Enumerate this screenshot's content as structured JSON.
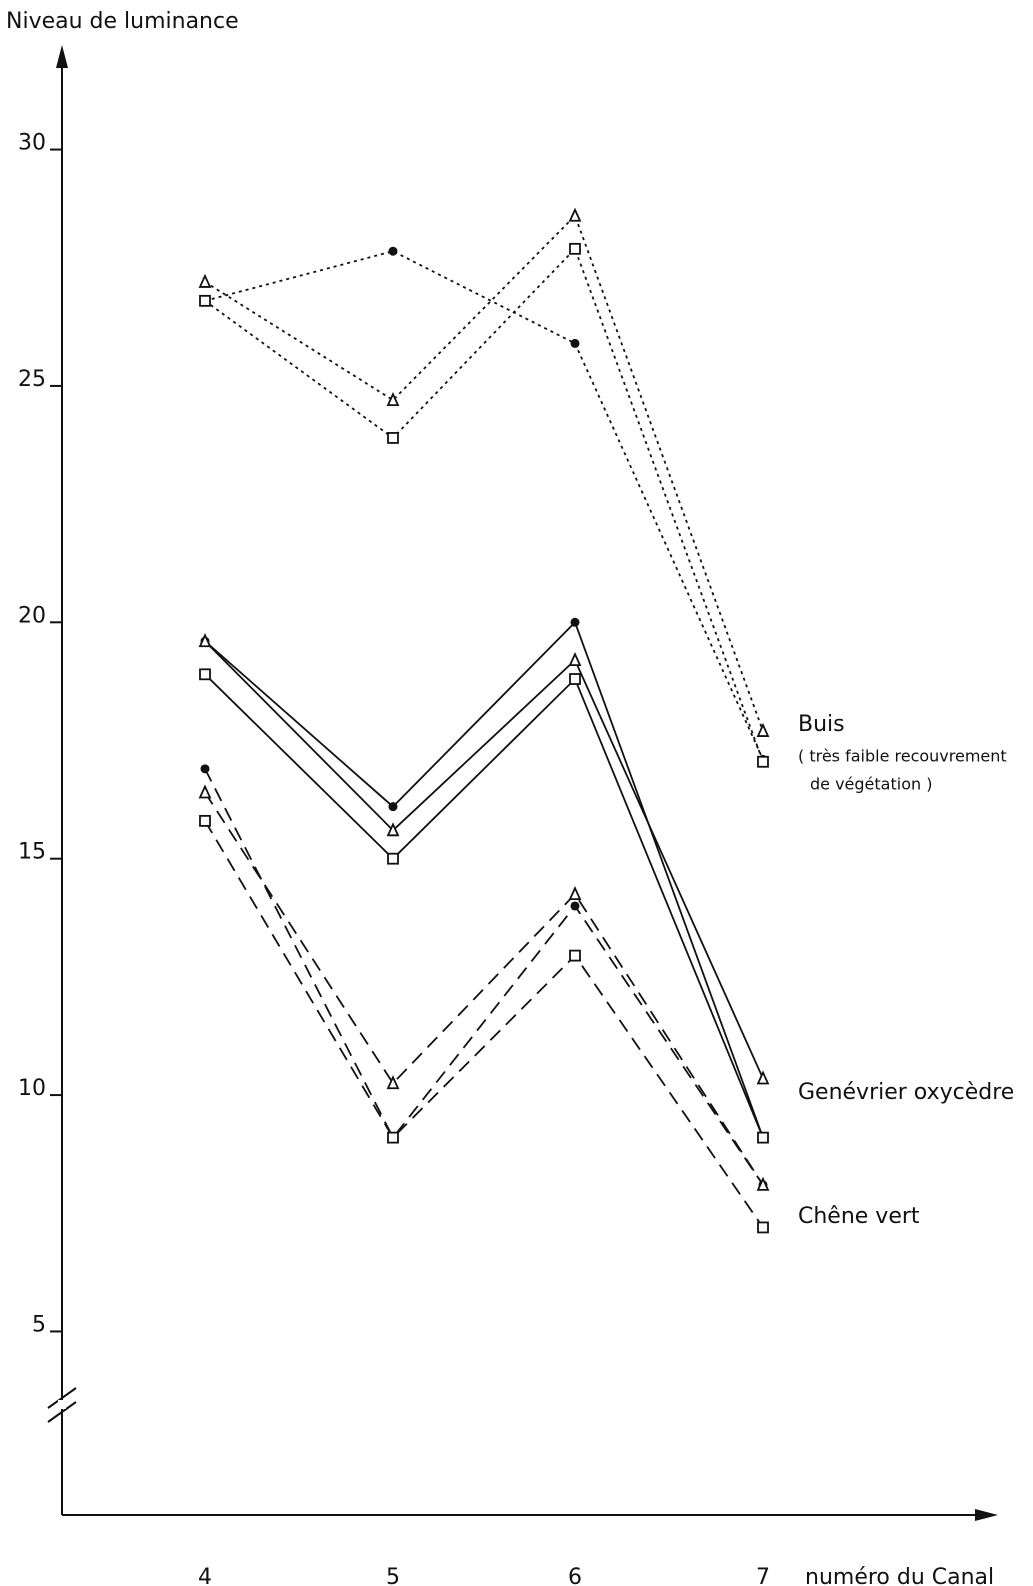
{
  "chart_data": {
    "type": "line",
    "y_label": "Niveau de luminance",
    "x_label": "numéro du Canal",
    "categories": [
      "4",
      "5",
      "6",
      "7"
    ],
    "ylim": [
      3,
      32
    ],
    "yticks": [
      5,
      10,
      15,
      20,
      25,
      30
    ],
    "annotations": [
      "Buis",
      "( très faible recouvrement",
      "de végétation )",
      "Genévrier oxycèdre",
      "Chêne vert"
    ],
    "series": [
      {
        "marker": "circle",
        "dash": "dotted",
        "color": "#111",
        "values": [
          26.8,
          27.85,
          25.9,
          17.1
        ]
      },
      {
        "marker": "triangle",
        "dash": "dotted",
        "color": "#111",
        "values": [
          27.2,
          24.7,
          28.6,
          17.7
        ]
      },
      {
        "marker": "square",
        "dash": "dotted",
        "color": "#111",
        "values": [
          26.8,
          23.9,
          27.9,
          17.05
        ]
      },
      {
        "marker": "circle",
        "dash": "solid",
        "color": "#111",
        "values": [
          19.6,
          16.1,
          20.0,
          9.1
        ]
      },
      {
        "marker": "triangle",
        "dash": "solid",
        "color": "#111",
        "values": [
          19.6,
          15.6,
          19.2,
          10.35
        ]
      },
      {
        "marker": "square",
        "dash": "solid",
        "color": "#111",
        "values": [
          18.9,
          15.0,
          18.8,
          9.1
        ]
      },
      {
        "marker": "circle",
        "dash": "dashed",
        "color": "#111",
        "values": [
          16.9,
          9.1,
          14.0,
          8.1
        ]
      },
      {
        "marker": "triangle",
        "dash": "dashed",
        "color": "#111",
        "values": [
          16.4,
          10.25,
          14.25,
          8.1
        ]
      },
      {
        "marker": "square",
        "dash": "dashed",
        "color": "#111",
        "values": [
          15.8,
          9.1,
          12.95,
          7.2
        ]
      }
    ]
  }
}
